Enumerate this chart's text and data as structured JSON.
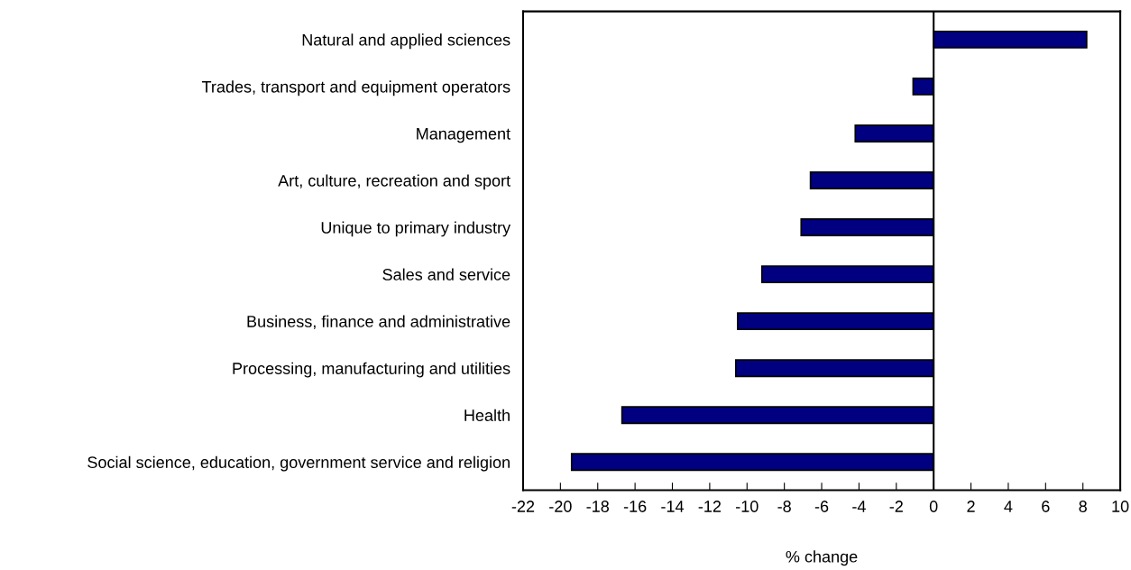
{
  "chart_data": {
    "type": "bar",
    "orientation": "horizontal",
    "xlabel": "% change",
    "categories": [
      "Natural and applied sciences",
      "Trades, transport and equipment operators",
      "Management",
      "Art, culture, recreation and sport",
      "Unique to primary industry",
      "Sales and service",
      "Business, finance and administrative",
      "Processing, manufacturing and utilities",
      "Health",
      "Social science, education, government service and religion"
    ],
    "values": [
      8.2,
      -1.1,
      -4.2,
      -6.6,
      -7.1,
      -9.2,
      -10.5,
      -10.6,
      -16.7,
      -19.4
    ],
    "color": "#000080",
    "xlim": [
      -22,
      10
    ],
    "xticks": [
      -22,
      -20,
      -18,
      -16,
      -14,
      -12,
      -10,
      -8,
      -6,
      -4,
      -2,
      0,
      2,
      4,
      6,
      8,
      10
    ],
    "ref_lines": [
      {
        "axis": "x",
        "value": 0,
        "color": "#000000"
      }
    ],
    "grid": false,
    "legend": false
  }
}
